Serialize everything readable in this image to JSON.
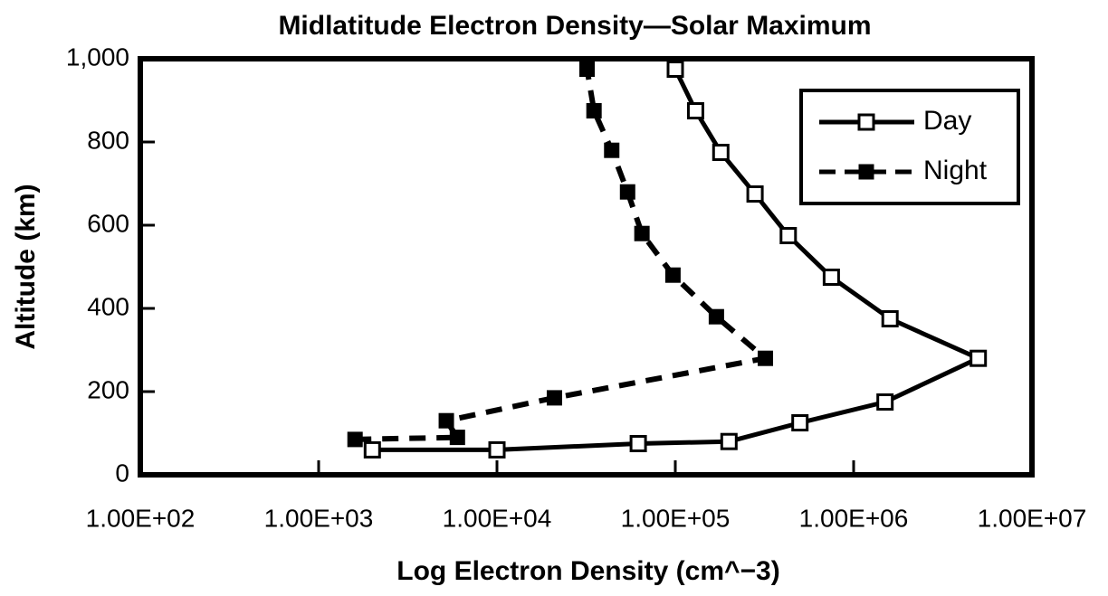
{
  "chart_data": {
    "type": "line",
    "title": "Midlatitude Electron Density—Solar Maximum",
    "xlabel": "Log Electron Density (cm^−3)",
    "ylabel": "Altitude (km)",
    "xscale": "log",
    "xlim": [
      100,
      10000000
    ],
    "xticks": [
      {
        "value": 100,
        "label": "1.00E+02"
      },
      {
        "value": 1000,
        "label": "1.00E+03"
      },
      {
        "value": 10000,
        "label": "1.00E+04"
      },
      {
        "value": 100000,
        "label": "1.00E+05"
      },
      {
        "value": 1000000,
        "label": "1.00E+06"
      },
      {
        "value": 10000000,
        "label": "1.00E+07"
      }
    ],
    "ylim": [
      0,
      1000
    ],
    "yticks": [
      0,
      200,
      400,
      600,
      {
        "value": 800,
        "label": "800"
      },
      {
        "value": 1000,
        "label": "1,000"
      }
    ],
    "legend": "upper right",
    "series": [
      {
        "name": "Day",
        "color": "#000000",
        "dash": false,
        "marker": "open-square",
        "x": [
          2000,
          10000,
          62000,
          200000,
          500000,
          1500000,
          5000000,
          1600000,
          750000,
          430000,
          280000,
          180000,
          130000,
          100000
        ],
        "values": [
          60,
          60,
          75,
          80,
          125,
          175,
          280,
          375,
          475,
          575,
          675,
          775,
          875,
          975
        ]
      },
      {
        "name": "Night",
        "color": "#000000",
        "dash": true,
        "marker": "filled-square",
        "x": [
          1600,
          6000,
          5200,
          21000,
          320000,
          170000,
          97000,
          65000,
          54000,
          44000,
          35000,
          32000
        ],
        "values": [
          85,
          90,
          130,
          185,
          280,
          380,
          480,
          580,
          680,
          780,
          875,
          975
        ]
      }
    ]
  }
}
